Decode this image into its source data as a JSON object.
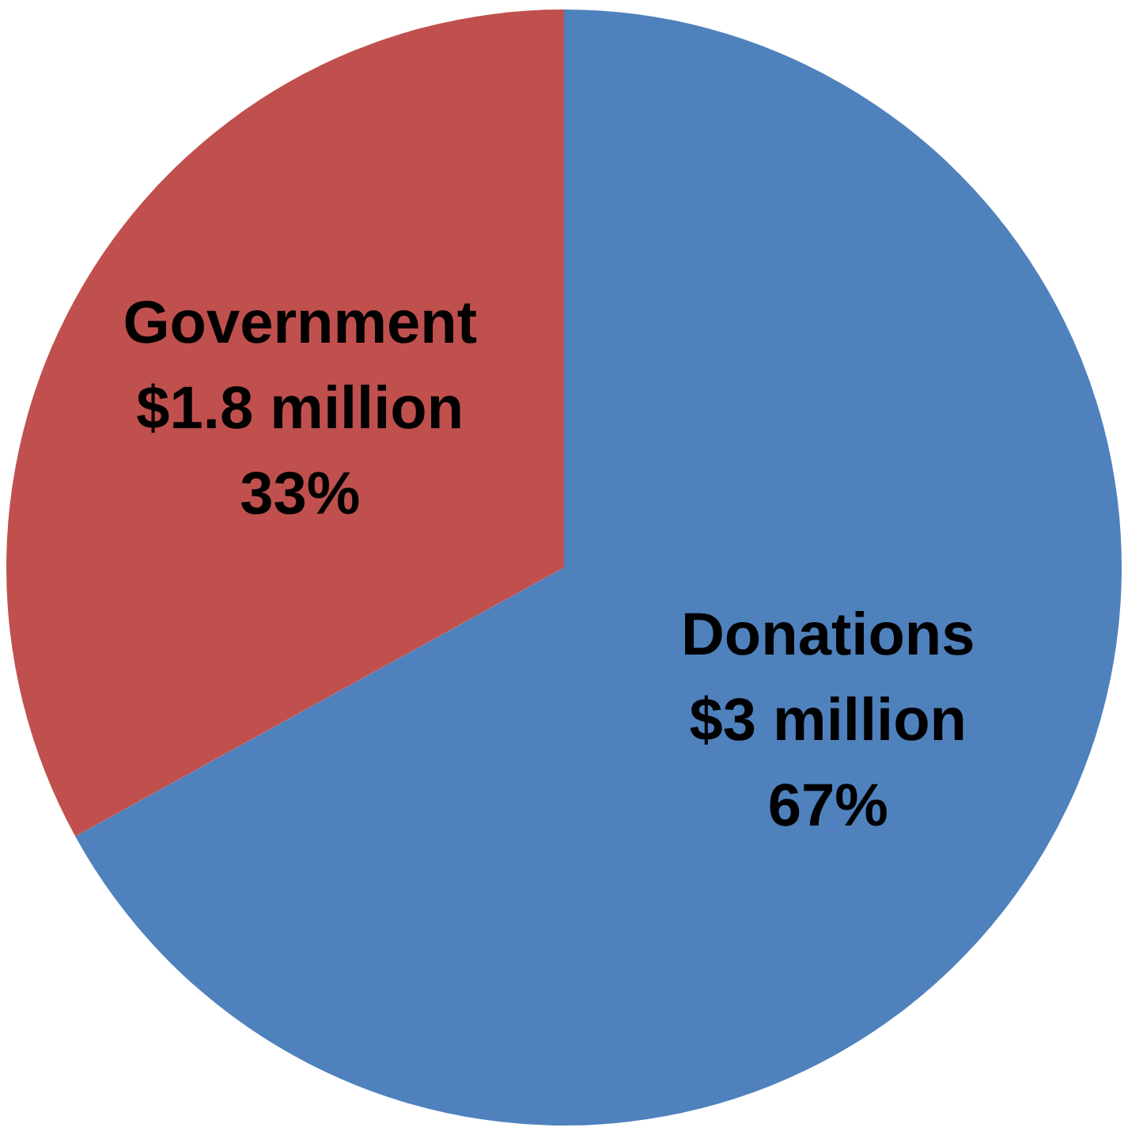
{
  "chart_data": {
    "type": "pie",
    "categories": [
      "Donations",
      "Government"
    ],
    "values": [
      67,
      33
    ],
    "colors": [
      "#4f81bd",
      "#c0504d"
    ],
    "value_labels": [
      "$3 million\n67%",
      "$1.8 million\n33%"
    ],
    "legend": false
  }
}
